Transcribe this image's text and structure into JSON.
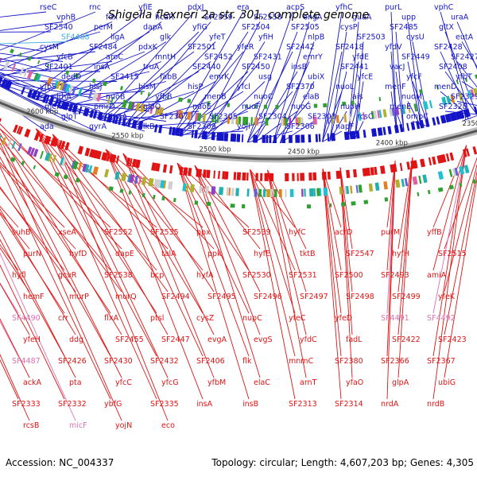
{
  "title": "Shigella flexneri 2a str. 301, complete genome",
  "footer": {
    "accession": "Accession: NC_004337",
    "summary": "Topology: circular; Length: 4,607,203 bp; Genes: 4,305"
  },
  "colors": {
    "forward": "#1414c8",
    "reverse": "#e01414",
    "highlight_forward": "#40b0e0",
    "highlight_reverse": "#e070b0",
    "backbone": "#555555"
  },
  "kbp_ticks": [
    "2700 kbp",
    "2650 kbp",
    "2600 kbp",
    "2550 kbp",
    "2500 kbp",
    "2450 kbp",
    "2400 kbp",
    "2350 kbp"
  ],
  "forward_genes": [
    "rseC",
    "rnc",
    "yfiE",
    "pdxJ",
    "era",
    "acpS",
    "yfhC",
    "purL",
    "vphC",
    "vphB",
    "fdx",
    "hcaR",
    "SF2559",
    "SF2558",
    "engA",
    "guaA",
    "upp",
    "uraA",
    "SF2540",
    "perM",
    "dapA",
    "yfiG",
    "SF2504",
    "SF2505",
    "cysP",
    "SF2485",
    "gltX",
    "SF4488",
    "ligA",
    "glk",
    "yfeT",
    "yfiH",
    "nlpB",
    "SF2503",
    "cysU",
    "eutA",
    "cysM",
    "SF2484",
    "pdxK",
    "SF2501",
    "yfeR",
    "SF2442",
    "SF2418",
    "yfdV",
    "SF2428",
    "yfcB",
    "aroC",
    "mntH",
    "SF2452",
    "SF2431",
    "emrY",
    "yfdE",
    "SF2449",
    "SF2427",
    "SF2401",
    "insA",
    "truA",
    "SF2440",
    "SF2450",
    "insB",
    "SF2441",
    "vacJ",
    "SF2408",
    "dedD",
    "SF2415",
    "fabB",
    "emrK",
    "usg",
    "ubiX",
    "yfcE",
    "yfcF",
    "yfbT",
    "yfbS",
    "hisJ",
    "hisM",
    "hisP",
    "yfcl",
    "SF2370",
    "nuoL",
    "menF",
    "menD",
    "lrhA",
    "nuoB",
    "yfbB",
    "menB",
    "nuoC",
    "elaB",
    "ais",
    "nuoM",
    "SF2329",
    "menC",
    "pmrD",
    "glpQ",
    "nuoE",
    "nuoF",
    "nuoG",
    "nuoH",
    "menE",
    "SF2328",
    "glpT",
    "inaA",
    "SF2307",
    "SF2305",
    "SF2304",
    "SF2303",
    "rcsC",
    "ompC",
    "vojL",
    "ada",
    "gyrA",
    "alkB",
    "SF2309",
    "yojl",
    "SF2306",
    "napF"
  ],
  "reverse_genes": [
    "suhB",
    "xseA",
    "SF2552",
    "SF2535",
    "ppx",
    "SF2539",
    "hyfC",
    "acrD",
    "purM",
    "yffB",
    "purN",
    "hyfD",
    "dapE",
    "talA",
    "ppk",
    "hyfE",
    "tktB",
    "SF2547",
    "hyfH",
    "SF2515",
    "hyfl",
    "gcvR",
    "SF2538",
    "bcp",
    "hyfA",
    "SF2530",
    "SF2531",
    "SF2500",
    "SF2493",
    "amiA",
    "hemF",
    "murP",
    "murQ",
    "SF2494",
    "SF2495",
    "SF2496",
    "SF2497",
    "SF2498",
    "SF2499",
    "yfeK",
    "SF4490",
    "crr",
    "flxA",
    "ptsl",
    "cysZ",
    "nupC",
    "yfeC",
    "yfeD",
    "SF4491",
    "SF4492",
    "yfeH",
    "ddg",
    "SF2455",
    "SF2447",
    "evgA",
    "evgS",
    "yfdC",
    "fadL",
    "SF2422",
    "SF2423",
    "SF4487",
    "SF2426",
    "SF2430",
    "SF2432",
    "SF2406",
    "flk",
    "mnmC",
    "SF2380",
    "SF2366",
    "SF2367",
    "ackA",
    "pta",
    "yfcC",
    "yfcG",
    "yfbM",
    "elaC",
    "arnT",
    "yfaO",
    "glpA",
    "ubiG",
    "SF2333",
    "SF2332",
    "ybfG",
    "SF2335",
    "insA",
    "insB",
    "SF2313",
    "SF2314",
    "nrdA",
    "nrdB",
    "rcsB",
    "micF",
    "yojN",
    "eco"
  ]
}
